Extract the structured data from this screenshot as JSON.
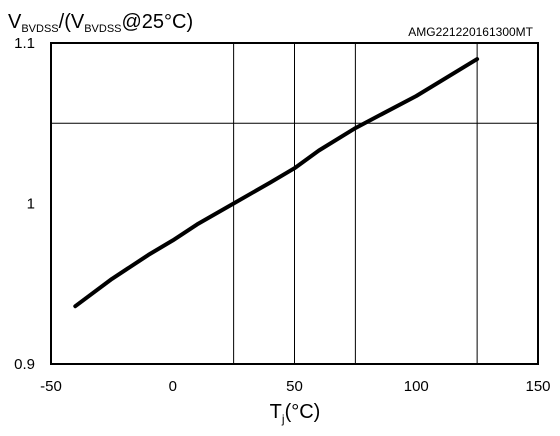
{
  "chart_data": {
    "type": "line",
    "ylabel_parts": {
      "v": "V",
      "sub1": "BVDSS",
      "mid": "/(V",
      "sub2": "BVDSS",
      "tail": "@25°C)"
    },
    "xlabel_parts": {
      "t": "T",
      "sub": "j",
      "tail": "(°C)"
    },
    "code": "AMG221220161300MT",
    "xlim": [
      -50,
      150
    ],
    "ylim": [
      0.9,
      1.1
    ],
    "x_ticks": [
      "-50",
      "0",
      "50",
      "100",
      "150"
    ],
    "y_ticks": [
      "0.9",
      "1",
      "1.1"
    ],
    "grid": {
      "vertical_at": [
        25,
        50,
        75,
        125
      ],
      "horizontal_at": [
        1.05
      ]
    },
    "series": [
      {
        "color": "#000000",
        "x": [
          -40,
          -25,
          -10,
          0,
          10,
          25,
          40,
          50,
          60,
          75,
          80,
          100,
          125
        ],
        "y": [
          0.936,
          0.953,
          0.968,
          0.977,
          0.987,
          1.0,
          1.013,
          1.022,
          1.033,
          1.047,
          1.051,
          1.067,
          1.09
        ]
      }
    ]
  }
}
